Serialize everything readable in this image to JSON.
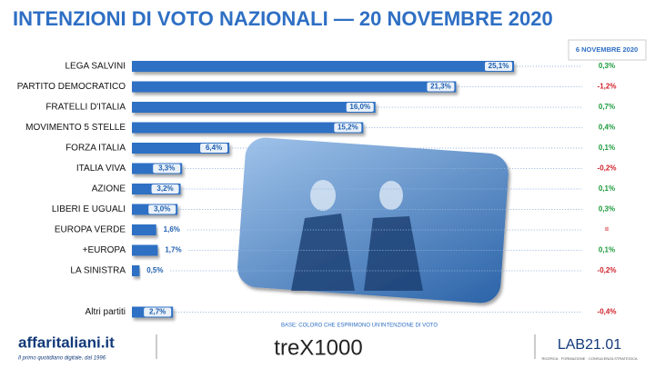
{
  "chart_data": {
    "type": "hbar",
    "title": "INTENZIONI DI VOTO NAZIONALI — 20 NOVEMBRE 2020",
    "categories": [
      "LEGA SALVINI",
      "PARTITO DEMOCRATICO",
      "FRATELLI D'ITALIA",
      "MOVIMENTO 5 STELLE",
      "FORZA ITALIA",
      "ITALIA VIVA",
      "AZIONE",
      "LIBERI E UGUALI",
      "EUROPA VERDE",
      "+EUROPA",
      "LA SINISTRA",
      "Altri partiti"
    ],
    "values": [
      25.1,
      21.3,
      16.0,
      15.2,
      6.4,
      3.3,
      3.2,
      3.0,
      1.6,
      1.7,
      0.5,
      2.7
    ],
    "value_labels": [
      "25,1%",
      "21,3%",
      "16,0%",
      "15,2%",
      "6,4%",
      "3,3%",
      "3,2%",
      "3,0%",
      "1,6%",
      "1,7%",
      "0,5%",
      "2,7%"
    ],
    "color": "#2e6fc4",
    "changes": {
      "title": "6 NOVEMBRE 2020",
      "values": [
        0.3,
        -1.2,
        0.7,
        0.4,
        0.1,
        -0.2,
        0.1,
        0.3,
        0,
        0.1,
        -0.2,
        -0.4
      ],
      "value_labels": [
        "0,3%",
        "-1,2%",
        "0,7%",
        "0,4%",
        "0,1%",
        "-0,2%",
        "0,1%",
        "0,3%",
        "=",
        "0,1%",
        "-0,2%",
        "-0,4%"
      ],
      "positive_color": "#1a9a3a",
      "negative_color": "#d0202a"
    },
    "note": "BASE: COLORO CHE ESPRIMONO UN'INTENZIONE DI VOTO"
  },
  "footer": {
    "brand": "affaritaliani.it",
    "tagline": "Il primo quotidiano digitale, dal 1996",
    "partner": "treX1000",
    "lab": "LAB21.01",
    "lab_tagline": "RICERCA · FORMAZIONE · CONSULENZA STRATEGICA"
  }
}
